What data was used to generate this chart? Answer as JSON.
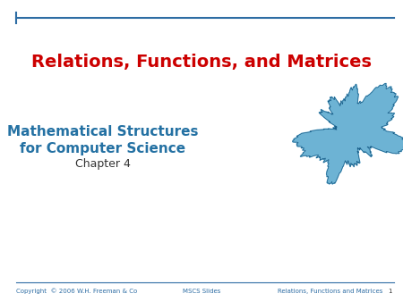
{
  "background_color": "#ffffff",
  "title": "Relations, Functions, and Matrices",
  "title_color": "#cc0000",
  "title_fontsize": 14,
  "subtitle_line1": "Mathematical Structures",
  "subtitle_line2": "for Computer Science",
  "subtitle_line3": "Chapter 4",
  "subtitle_color": "#2471a3",
  "subtitle_fontsize": 11,
  "chapter_fontsize": 9,
  "chapter_color": "#333333",
  "header_line_color": "#2e6da4",
  "footer_line_color": "#2e6da4",
  "footer_left": "Copyright  © 2006 W.H. Freeman & Co",
  "footer_center": "MSCS Slides",
  "footer_right": "Relations, Functions and Matrices",
  "footer_color": "#2e6da4",
  "footer_fontsize": 5,
  "fractal_fill_color": "#6db3d4",
  "fractal_edge_color": "#1a5f8a",
  "page_number": "1",
  "page_number_color": "#333333"
}
